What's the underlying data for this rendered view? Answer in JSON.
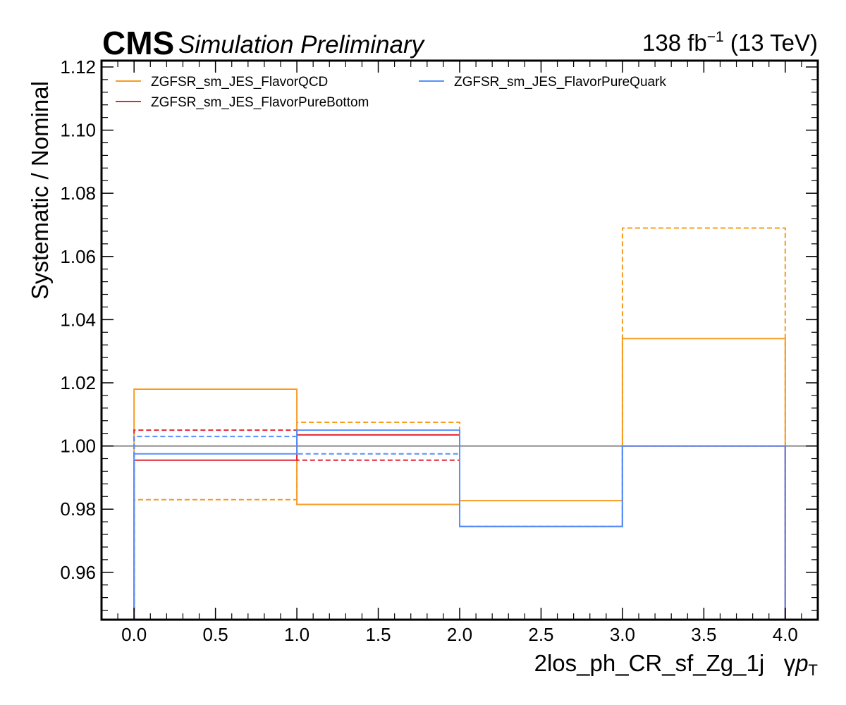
{
  "header": {
    "cms_label": "CMS",
    "status_label": "Simulation Preliminary",
    "lumi_value": "138 fb",
    "lumi_exponent": "−1",
    "energy": "(13 TeV)"
  },
  "chart_data": {
    "type": "line",
    "subtype": "step-histogram",
    "xlabel_prefix": "2los_ph_CR_sf_Zg_1j",
    "xlabel_gamma": "γ",
    "xlabel_p": "p",
    "xlabel_sub": "T",
    "ylabel": "Systematic / Nominal",
    "xlim": [
      -0.2,
      4.2
    ],
    "ylim": [
      0.945,
      1.122
    ],
    "x_ticks": [
      0.0,
      0.5,
      1.0,
      1.5,
      2.0,
      2.5,
      3.0,
      3.5,
      4.0
    ],
    "x_tick_labels": [
      "0.0",
      "0.5",
      "1.0",
      "1.5",
      "2.0",
      "2.5",
      "3.0",
      "3.5",
      "4.0"
    ],
    "y_ticks": [
      0.96,
      0.98,
      1.0,
      1.02,
      1.04,
      1.06,
      1.08,
      1.1,
      1.12
    ],
    "y_tick_labels": [
      "0.96",
      "0.98",
      "1.00",
      "1.02",
      "1.04",
      "1.06",
      "1.08",
      "1.10",
      "1.12"
    ],
    "bin_edges": [
      0,
      1,
      2,
      3,
      4
    ],
    "reference_line": 1.0,
    "legend_position": "top-left, two columns",
    "series": [
      {
        "name": "ZGFSR_sm_JES_FlavorQCD",
        "color": "#f89c20",
        "up": [
          1.018,
          0.9815,
          0.9827,
          1.034
        ],
        "down": [
          0.983,
          1.0075,
          0.9745,
          1.069
        ]
      },
      {
        "name": "ZGFSR_sm_JES_FlavorPureBottom",
        "color": "#e42536",
        "up": [
          0.9955,
          1.0035,
          0.9745,
          1.0
        ],
        "down": [
          1.005,
          0.9955,
          0.9745,
          1.0
        ]
      },
      {
        "name": "ZGFSR_sm_JES_FlavorPureQuark",
        "color": "#5790fc",
        "up": [
          0.9975,
          1.005,
          0.9745,
          1.0
        ],
        "down": [
          1.003,
          0.9975,
          0.9745,
          1.0
        ]
      }
    ]
  }
}
